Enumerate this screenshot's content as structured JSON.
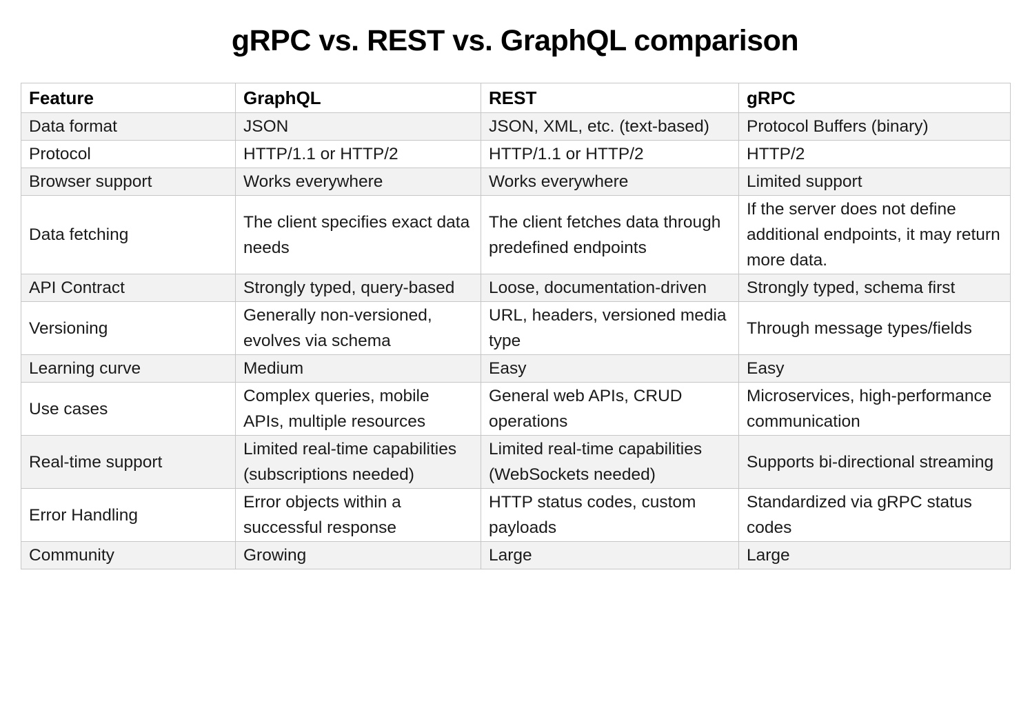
{
  "title": "gRPC vs. REST vs. GraphQL comparison",
  "colors": {
    "stripe": "#f2f2f2",
    "border": "#c6c6c6",
    "text": "#1a1a1a",
    "title": "#000000",
    "bg": "#ffffff"
  },
  "table": {
    "columns": [
      "Feature",
      "GraphQL",
      "REST",
      "gRPC"
    ],
    "rows": [
      {
        "feature": "Data format",
        "values": [
          "JSON",
          "JSON, XML, etc. (text-based)",
          "Protocol Buffers (binary)"
        ]
      },
      {
        "feature": "Protocol",
        "values": [
          "HTTP/1.1 or HTTP/2",
          "HTTP/1.1 or HTTP/2",
          "HTTP/2"
        ]
      },
      {
        "feature": "Browser support",
        "values": [
          "Works everywhere",
          "Works everywhere",
          "Limited support"
        ]
      },
      {
        "feature": "Data fetching",
        "values": [
          "The client specifies exact data needs",
          "The client fetches data through predefined endpoints",
          "If the server does not define additional endpoints, it may return more data."
        ]
      },
      {
        "feature": "API Contract",
        "values": [
          "Strongly typed, query-based",
          "Loose, documentation-driven",
          "Strongly typed, schema first"
        ]
      },
      {
        "feature": "Versioning",
        "values": [
          "Generally non-versioned, evolves via schema",
          "URL, headers, versioned media type",
          "Through message types/fields"
        ]
      },
      {
        "feature": "Learning curve",
        "values": [
          "Medium",
          "Easy",
          "Easy"
        ]
      },
      {
        "feature": "Use cases",
        "values": [
          "Complex queries, mobile APIs, multiple resources",
          "General web APIs, CRUD operations",
          "Microservices, high-performance communication"
        ]
      },
      {
        "feature": "Real-time support",
        "values": [
          "Limited real-time capabilities (subscriptions needed)",
          "Limited real-time capabilities (WebSockets needed)",
          "Supports bi-directional streaming"
        ]
      },
      {
        "feature": "Error Handling",
        "values": [
          "Error objects within a successful response",
          "HTTP status codes, custom payloads",
          "Standardized via gRPC status codes"
        ]
      },
      {
        "feature": "Community",
        "values": [
          "Growing",
          "Large",
          "Large"
        ]
      }
    ]
  }
}
